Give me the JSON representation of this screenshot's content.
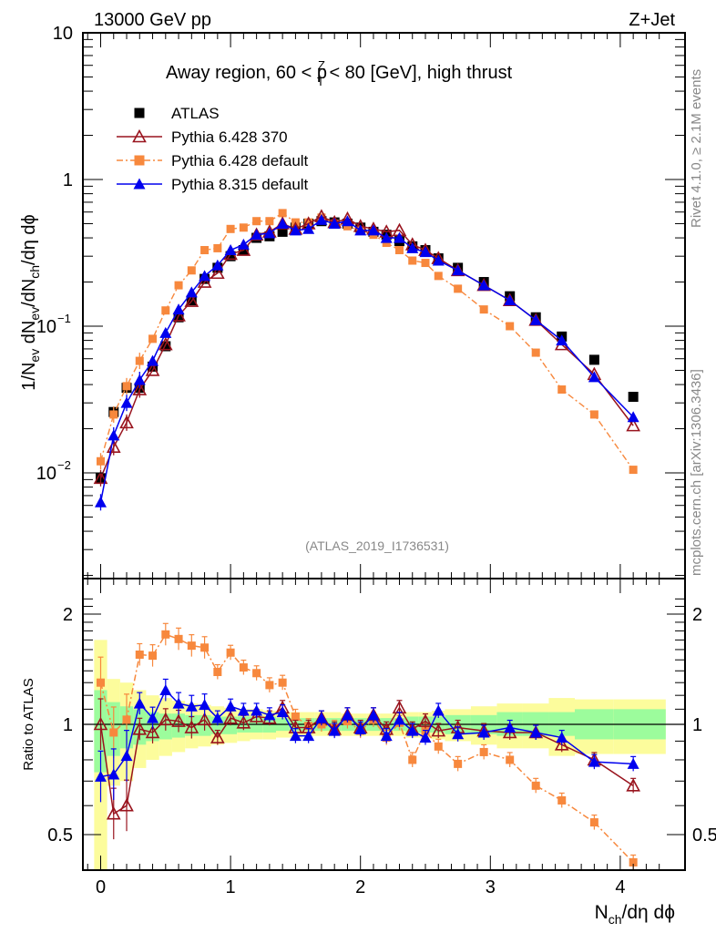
{
  "chart_data": {
    "type": "scatter",
    "header_left": "13000 GeV pp",
    "header_right": "Z+Jet",
    "title": "Away region, 60 < p_T^Z < 80 [GeV], high thrust",
    "title_parts": {
      "pre": "Away region, 60 < p",
      "sup": "Z",
      "sub": "T",
      "post": " < 80 [GeV], high thrust"
    },
    "ylabel": "1/N_ev dN_ev/dN_ch/dη dϕ",
    "ylabel_parts": [
      "1/N",
      "ev",
      " dN",
      "ev",
      "/dN",
      "ch",
      "/dη dϕ"
    ],
    "ratio_ylabel": "Ratio to ATLAS",
    "xlabel": "N_ch/dη dϕ",
    "xlabel_parts": [
      "N",
      "ch",
      "/dη dϕ"
    ],
    "analysis_id": "(ATLAS_2019_I1736531)",
    "side_text_top": "Rivet 4.1.0, ≥ 2.1M events",
    "side_text_bottom": "mcplots.cern.ch [arXiv:1306.3436]",
    "xlim": [
      -0.15,
      4.4
    ],
    "ylim": [
      0.002,
      10
    ],
    "yscale": "log",
    "ratio_ylim": [
      0.4,
      2.3
    ],
    "xticks": [
      "0",
      "1",
      "2",
      "3",
      "4"
    ],
    "yticks": [
      "10",
      "1",
      "10^-1",
      "10^-2"
    ],
    "ratio_yticks": [
      "2",
      "1",
      "0.5"
    ],
    "legend_position": "top-left",
    "x": [
      0.0,
      0.1,
      0.2,
      0.3,
      0.4,
      0.5,
      0.6,
      0.7,
      0.8,
      0.9,
      1.0,
      1.1,
      1.2,
      1.3,
      1.4,
      1.5,
      1.6,
      1.7,
      1.8,
      1.9,
      2.0,
      2.1,
      2.2,
      2.3,
      2.4,
      2.5,
      2.6,
      2.75,
      2.95,
      3.15,
      3.35,
      3.55,
      3.8,
      4.1
    ],
    "series": [
      {
        "name": "ATLAS",
        "color": "#000000",
        "marker": "square",
        "values": [
          0.0092,
          0.026,
          0.038,
          0.038,
          0.053,
          0.073,
          0.115,
          0.15,
          0.21,
          0.25,
          0.3,
          0.33,
          0.4,
          0.41,
          0.44,
          0.47,
          0.5,
          0.52,
          0.51,
          0.5,
          0.47,
          0.44,
          0.42,
          0.38,
          0.35,
          0.33,
          0.29,
          0.25,
          0.2,
          0.16,
          0.115,
          0.085,
          0.059,
          0.033
        ]
      },
      {
        "name": "Pythia 6.428 370",
        "color": "#99141e",
        "marker": "open-triangle",
        "values": [
          0.0092,
          0.015,
          0.022,
          0.037,
          0.05,
          0.075,
          0.118,
          0.148,
          0.2,
          0.23,
          0.31,
          0.33,
          0.42,
          0.44,
          0.5,
          0.46,
          0.5,
          0.56,
          0.51,
          0.54,
          0.48,
          0.46,
          0.44,
          0.45,
          0.36,
          0.33,
          0.29,
          0.24,
          0.19,
          0.15,
          0.11,
          0.075,
          0.047,
          0.021
        ]
      },
      {
        "name": "Pythia 6.428 default",
        "color": "#f7883d",
        "marker": "square",
        "dashed": true,
        "values": [
          0.012,
          0.025,
          0.039,
          0.058,
          0.082,
          0.128,
          0.19,
          0.24,
          0.33,
          0.34,
          0.46,
          0.47,
          0.52,
          0.52,
          0.59,
          0.51,
          0.51,
          0.55,
          0.5,
          0.48,
          0.45,
          0.42,
          0.37,
          0.33,
          0.28,
          0.27,
          0.22,
          0.18,
          0.13,
          0.1,
          0.066,
          0.037,
          0.025,
          0.0105
        ]
      },
      {
        "name": "Pythia 8.315 default",
        "color": "#0000ee",
        "marker": "triangle",
        "values": [
          0.0063,
          0.018,
          0.03,
          0.043,
          0.058,
          0.09,
          0.13,
          0.17,
          0.22,
          0.26,
          0.33,
          0.36,
          0.42,
          0.43,
          0.5,
          0.45,
          0.46,
          0.53,
          0.5,
          0.52,
          0.45,
          0.45,
          0.4,
          0.4,
          0.34,
          0.32,
          0.28,
          0.24,
          0.19,
          0.15,
          0.11,
          0.08,
          0.045,
          0.024
        ]
      }
    ],
    "ratio": {
      "reference_line": 1,
      "band_inner_color": "#9cfc9c",
      "band_outer_color": "#fcfc9c",
      "band_edges": [
        -0.05,
        0.05,
        0.15,
        0.25,
        0.35,
        0.45,
        0.55,
        0.65,
        0.75,
        0.85,
        0.95,
        1.05,
        1.15,
        1.25,
        1.35,
        1.45,
        1.55,
        1.65,
        1.75,
        1.85,
        1.95,
        2.05,
        2.15,
        2.25,
        2.35,
        2.45,
        2.55,
        2.65,
        2.85,
        3.05,
        3.25,
        3.45,
        3.65,
        3.95,
        4.35
      ],
      "band_inner": [
        [
          0.74,
          1.24
        ],
        [
          0.82,
          1.15
        ],
        [
          0.86,
          1.12
        ],
        [
          0.88,
          1.1
        ],
        [
          0.9,
          1.08
        ],
        [
          0.91,
          1.07
        ],
        [
          0.92,
          1.07
        ],
        [
          0.93,
          1.06
        ],
        [
          0.93,
          1.06
        ],
        [
          0.94,
          1.05
        ],
        [
          0.94,
          1.05
        ],
        [
          0.95,
          1.05
        ],
        [
          0.95,
          1.05
        ],
        [
          0.95,
          1.05
        ],
        [
          0.96,
          1.04
        ],
        [
          0.96,
          1.04
        ],
        [
          0.96,
          1.04
        ],
        [
          0.96,
          1.04
        ],
        [
          0.96,
          1.04
        ],
        [
          0.96,
          1.04
        ],
        [
          0.96,
          1.04
        ],
        [
          0.96,
          1.04
        ],
        [
          0.96,
          1.04
        ],
        [
          0.96,
          1.04
        ],
        [
          0.95,
          1.05
        ],
        [
          0.95,
          1.05
        ],
        [
          0.95,
          1.05
        ],
        [
          0.94,
          1.06
        ],
        [
          0.94,
          1.06
        ],
        [
          0.93,
          1.08
        ],
        [
          0.93,
          1.08
        ],
        [
          0.93,
          1.08
        ],
        [
          0.91,
          1.1
        ],
        [
          0.91,
          1.1
        ]
      ],
      "band_outer": [
        [
          0.3,
          1.7
        ],
        [
          0.68,
          1.33
        ],
        [
          0.7,
          1.3
        ],
        [
          0.76,
          1.24
        ],
        [
          0.8,
          1.2
        ],
        [
          0.82,
          1.18
        ],
        [
          0.84,
          1.16
        ],
        [
          0.86,
          1.14
        ],
        [
          0.87,
          1.13
        ],
        [
          0.88,
          1.12
        ],
        [
          0.89,
          1.11
        ],
        [
          0.9,
          1.1
        ],
        [
          0.91,
          1.1
        ],
        [
          0.91,
          1.09
        ],
        [
          0.92,
          1.08
        ],
        [
          0.92,
          1.08
        ],
        [
          0.93,
          1.08
        ],
        [
          0.93,
          1.08
        ],
        [
          0.93,
          1.08
        ],
        [
          0.93,
          1.07
        ],
        [
          0.93,
          1.07
        ],
        [
          0.93,
          1.07
        ],
        [
          0.93,
          1.07
        ],
        [
          0.93,
          1.07
        ],
        [
          0.92,
          1.08
        ],
        [
          0.92,
          1.08
        ],
        [
          0.91,
          1.09
        ],
        [
          0.9,
          1.1
        ],
        [
          0.88,
          1.12
        ],
        [
          0.86,
          1.14
        ],
        [
          0.86,
          1.14
        ],
        [
          0.82,
          1.18
        ],
        [
          0.83,
          1.17
        ],
        [
          0.83,
          1.17
        ]
      ],
      "series": [
        {
          "name": "Pythia 6.428 370",
          "values": [
            1.0,
            0.57,
            0.6,
            0.97,
            0.95,
            1.03,
            1.02,
            0.98,
            1.03,
            0.92,
            1.04,
            1.01,
            1.05,
            1.04,
            1.11,
            0.98,
            0.98,
            1.04,
            0.97,
            1.06,
            0.98,
            1.06,
            0.97,
            1.11,
            0.97,
            1.02,
            0.96,
            0.98,
            0.96,
            0.95,
            0.95,
            0.88,
            0.8,
            0.68
          ]
        },
        {
          "name": "Pythia 6.428 default",
          "values": [
            1.3,
            0.95,
            1.03,
            1.55,
            1.54,
            1.76,
            1.71,
            1.64,
            1.62,
            1.39,
            1.57,
            1.43,
            1.38,
            1.28,
            1.3,
            1.05,
            0.99,
            1.0,
            0.98,
            1.02,
            0.96,
            1.03,
            0.92,
            1.01,
            0.8,
            0.96,
            0.87,
            0.78,
            0.84,
            0.8,
            0.68,
            0.62,
            0.54,
            0.42
          ]
        },
        {
          "name": "Pythia 8.315 default",
          "values": [
            0.72,
            0.73,
            0.82,
            1.14,
            1.04,
            1.24,
            1.14,
            1.12,
            1.13,
            1.04,
            1.12,
            1.09,
            1.09,
            1.06,
            1.08,
            0.93,
            0.93,
            1.04,
            0.96,
            1.06,
            0.97,
            1.06,
            0.93,
            1.03,
            0.96,
            0.92,
            1.09,
            0.94,
            0.95,
            0.98,
            0.95,
            0.92,
            0.79,
            0.78
          ]
        }
      ]
    }
  }
}
